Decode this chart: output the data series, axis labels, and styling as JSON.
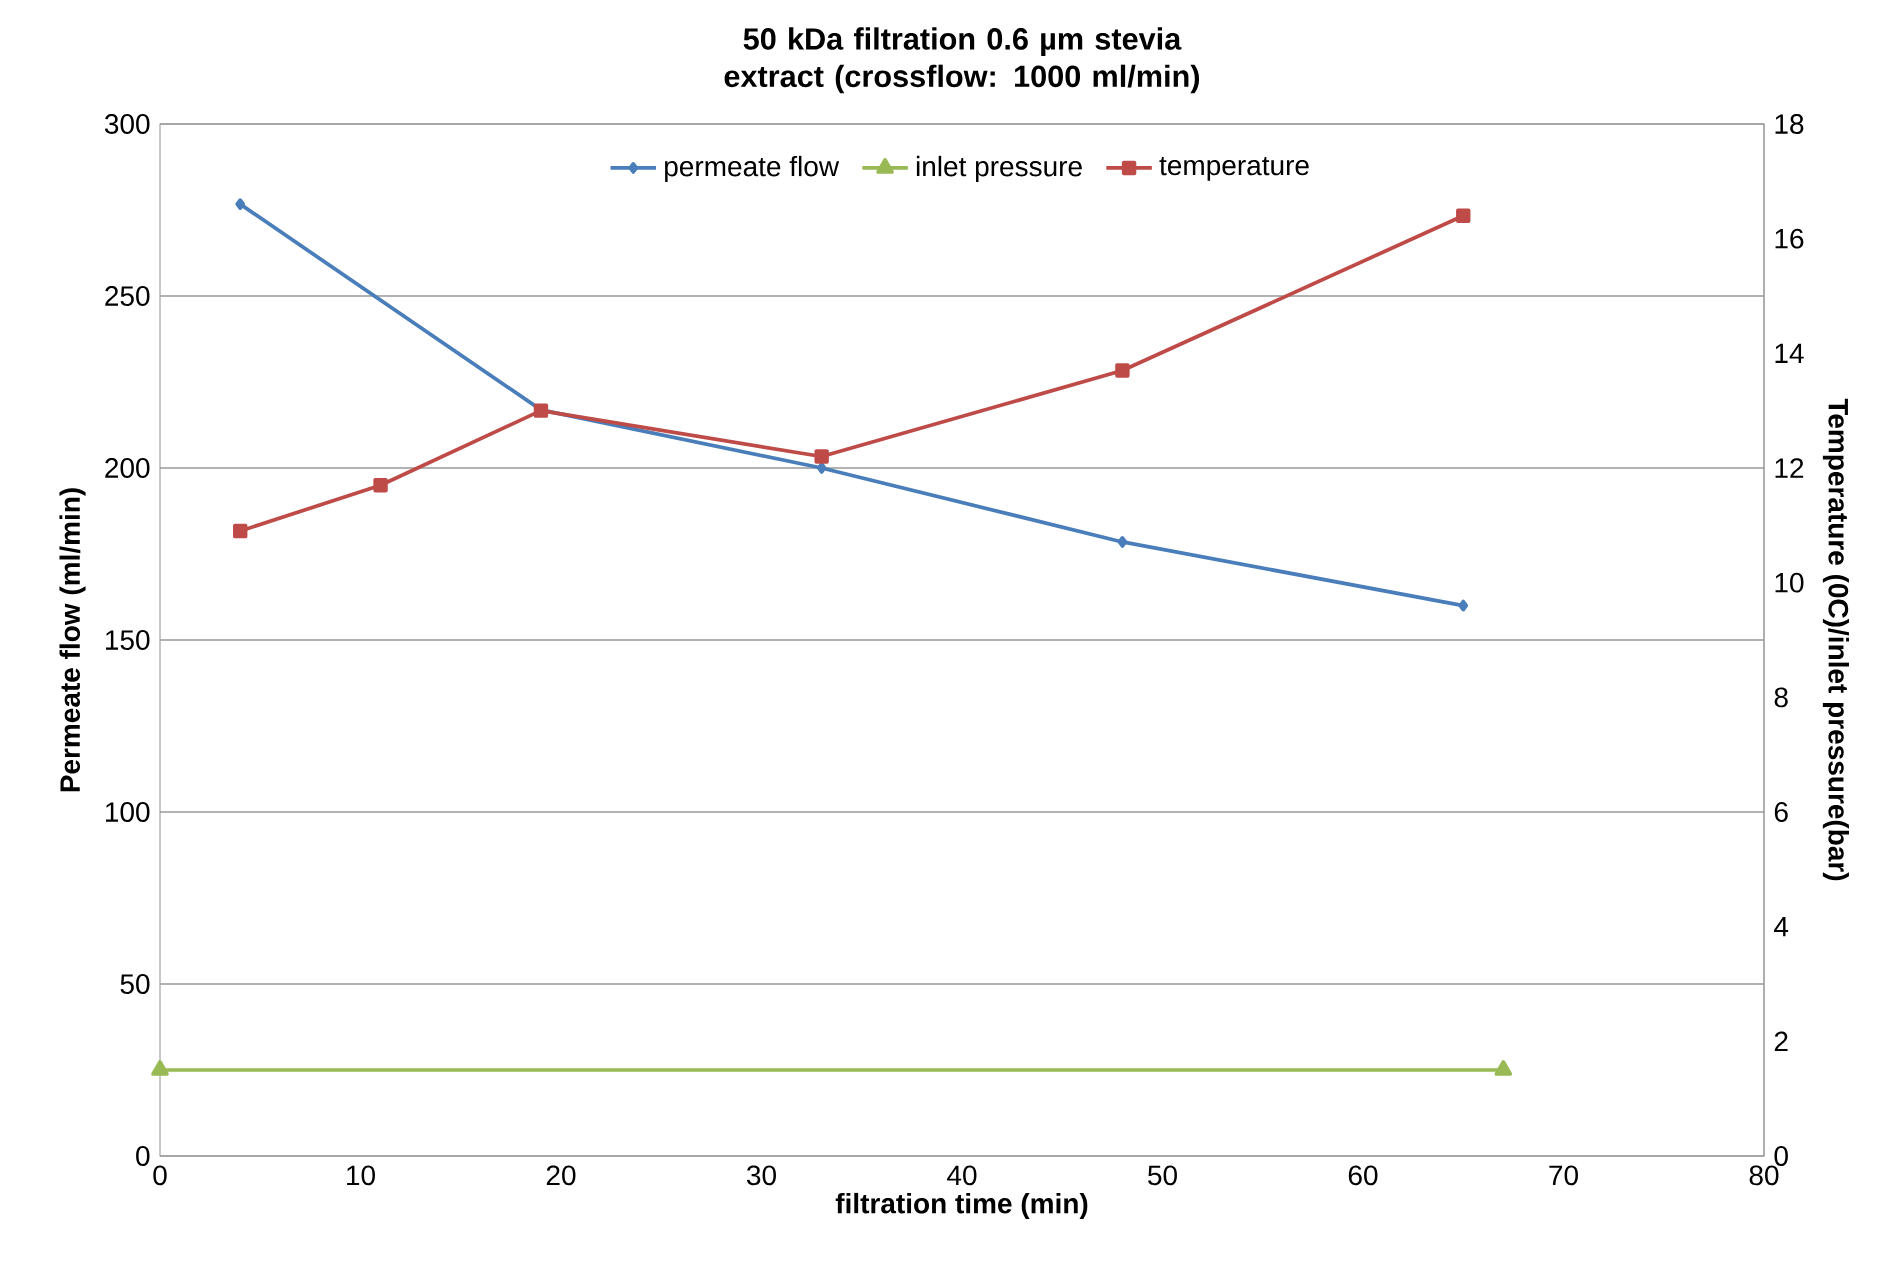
{
  "chart_data": {
    "type": "line",
    "title": "50 kDa filtration 0.6 µm stevia extract (crossflow: 1000 ml/min)",
    "xlabel": "filtration time (min)",
    "ylabel": "Permeate flow (ml/min)",
    "y2label": "Temperature (0C)/inlet pressure(bar)",
    "xlim": [
      0,
      80
    ],
    "xticks": [
      0,
      10,
      20,
      30,
      40,
      50,
      60,
      70,
      80
    ],
    "ylim": [
      0,
      300
    ],
    "yticks": [
      0,
      50,
      100,
      150,
      200,
      250,
      300
    ],
    "y2lim": [
      0,
      18
    ],
    "y2ticks": [
      0,
      2,
      4,
      6,
      8,
      10,
      12,
      14,
      16,
      18
    ],
    "grid": "y",
    "legend": "top",
    "series": [
      {
        "name": "permeate flow",
        "color": "#4a7ebb",
        "marker": "diamond",
        "x": [
          4,
          19,
          33,
          48,
          65
        ],
        "values": [
          276.7,
          216.9,
          200,
          178.5,
          160
        ]
      },
      {
        "name": "inlet pressure",
        "color": "#98b954",
        "marker": "triangle",
        "axis": "y2",
        "x": [
          0,
          67
        ],
        "values": [
          1.5,
          1.5
        ]
      },
      {
        "name": "temperature",
        "color": "#be4b48",
        "marker": "square",
        "axis": "y2",
        "x": [
          4,
          11,
          19,
          33,
          48,
          65
        ],
        "values": [
          10.9,
          11.7,
          13.0,
          12.2,
          13.7,
          16.4
        ]
      }
    ]
  }
}
